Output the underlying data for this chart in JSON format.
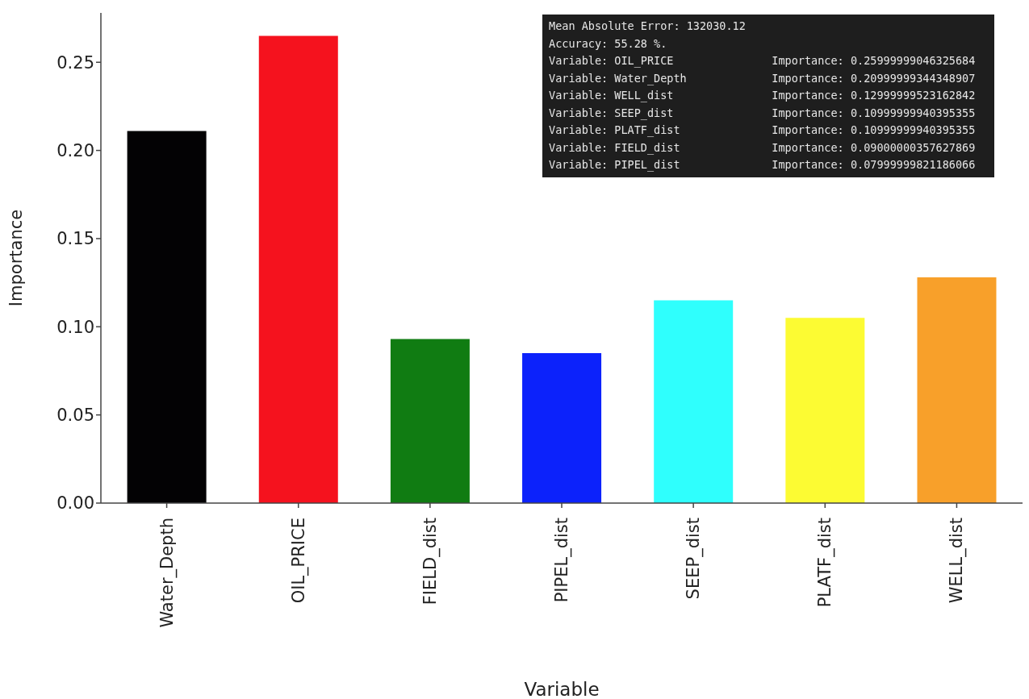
{
  "chart_data": {
    "type": "bar",
    "xlabel": "Variable",
    "ylabel": "Importance",
    "categories": [
      "Water_Depth",
      "OIL_PRICE",
      "FIELD_dist",
      "PIPEL_dist",
      "SEEP_dist",
      "PLATF_dist",
      "WELL_dist"
    ],
    "values": [
      0.211,
      0.265,
      0.093,
      0.085,
      0.115,
      0.105,
      0.128
    ],
    "colors": [
      "#030204",
      "#f5121e",
      "#107c12",
      "#0c22fb",
      "#2ffffd",
      "#fcfb33",
      "#f8a02a"
    ],
    "ylim": [
      0,
      0.278
    ],
    "yticks": [
      {
        "value": 0,
        "label": "0.00"
      },
      {
        "value": 0.05,
        "label": "0.05"
      },
      {
        "value": 0.1,
        "label": "0.10"
      },
      {
        "value": 0.15,
        "label": "0.15"
      },
      {
        "value": 0.2,
        "label": "0.20"
      },
      {
        "value": 0.25,
        "label": "0.25"
      }
    ],
    "grid": false,
    "legend": false,
    "annotations": [
      "Mean Absolute Error: 132030.12",
      "Accuracy: 55.28 %.",
      "Variable: OIL_PRICE\tImportance: 0.25999999046325684",
      "Variable: Water_Depth\tImportance: 0.20999999344348907",
      "Variable: WELL_dist\tImportance: 0.12999999523162842",
      "Variable: SEEP_dist\tImportance: 0.10999999940395355",
      "Variable: PLATF_dist\tImportance: 0.10999999940395355",
      "Variable: FIELD_dist\tImportance: 0.09000000357627869",
      "Variable: PIPEL_dist\tImportance: 0.07999999821186066"
    ]
  }
}
